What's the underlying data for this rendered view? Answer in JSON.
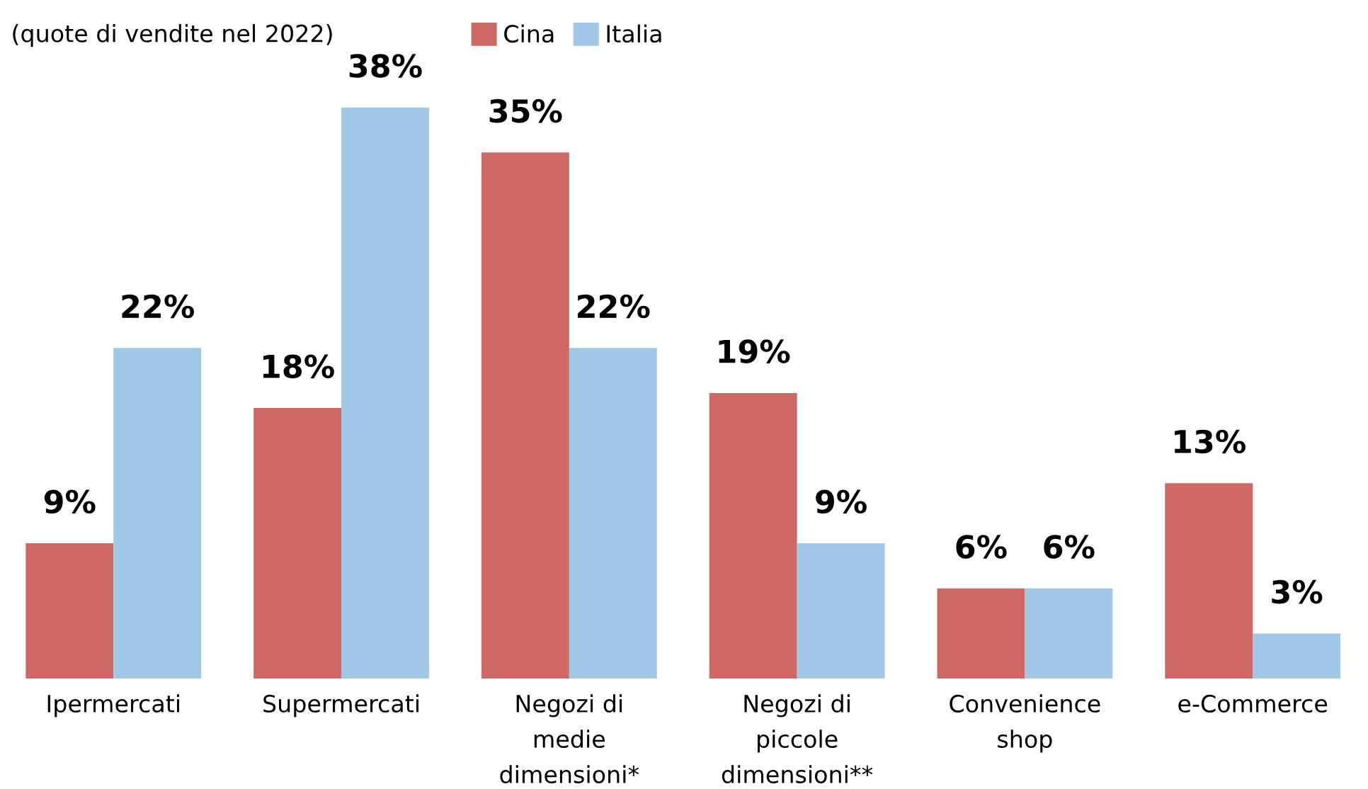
{
  "chart_data": {
    "type": "bar",
    "title": "(quote di vendite nel 2022)",
    "categories": [
      "Ipermercati",
      "Supermercati",
      "Negozi di\nmedie\ndimensioni*",
      "Negozi di\npiccole\ndimensioni**",
      "Convenience\nshop",
      "e-Commerce"
    ],
    "series": [
      {
        "name": "Cina",
        "color": "#cd6864",
        "values": [
          9,
          18,
          35,
          19,
          6,
          13
        ],
        "value_labels": [
          "9%",
          "18%",
          "35%",
          "19%",
          "6%",
          "13%"
        ]
      },
      {
        "name": "Italia",
        "color": "#a0c8e6",
        "values": [
          22,
          38,
          22,
          9,
          6,
          3
        ],
        "value_labels": [
          "22%",
          "38%",
          "22%",
          "9%",
          "6%",
          "3%"
        ]
      }
    ],
    "legend": "top",
    "grid": false
  }
}
